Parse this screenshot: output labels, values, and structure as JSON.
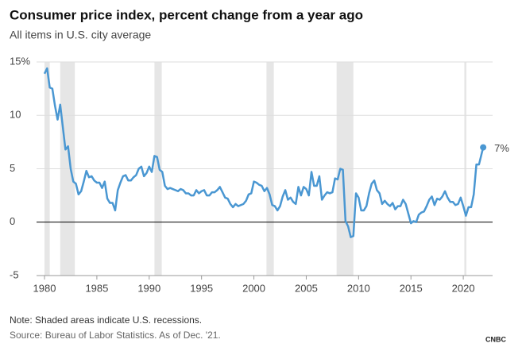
{
  "chart_data": {
    "type": "line",
    "title": "Consumer price index, percent change from a year ago",
    "subtitle": "All items in U.S. city average",
    "note": "Note: Shaded areas indicate U.S. recessions.",
    "source": "Source: Bureau of Labor Statistics. As of Dec. '21.",
    "logo": "CNBC",
    "xlim": [
      1979.24,
      2022.8
    ],
    "xticks": [
      1980,
      1985,
      1990,
      1995,
      2000,
      2005,
      2010,
      2015,
      2020
    ],
    "ylim": [
      -5,
      15
    ],
    "yticks": [
      -5,
      0,
      5,
      10,
      {
        "value": 15,
        "label": "15%"
      }
    ],
    "grid": true,
    "recessions": [
      [
        1980.0,
        1980.5
      ],
      [
        1981.5,
        1982.9
      ],
      [
        1990.5,
        1991.2
      ],
      [
        2001.2,
        2001.9
      ],
      [
        2007.9,
        2009.5
      ],
      [
        2020.1,
        2020.3
      ]
    ],
    "x": [
      1980,
      1980.25,
      1980.5,
      1980.75,
      1981,
      1981.25,
      1981.5,
      1981.75,
      1982,
      1982.25,
      1982.5,
      1982.75,
      1983,
      1983.25,
      1983.5,
      1983.75,
      1984,
      1984.25,
      1984.5,
      1984.75,
      1985,
      1985.25,
      1985.5,
      1985.75,
      1986,
      1986.25,
      1986.5,
      1986.75,
      1987,
      1987.25,
      1987.5,
      1987.75,
      1988,
      1988.25,
      1988.5,
      1988.75,
      1989,
      1989.25,
      1989.5,
      1989.75,
      1990,
      1990.25,
      1990.5,
      1990.75,
      1991,
      1991.25,
      1991.5,
      1991.75,
      1992,
      1992.25,
      1992.5,
      1992.75,
      1993,
      1993.25,
      1993.5,
      1993.75,
      1994,
      1994.25,
      1994.5,
      1994.75,
      1995,
      1995.25,
      1995.5,
      1995.75,
      1996,
      1996.25,
      1996.5,
      1996.75,
      1997,
      1997.25,
      1997.5,
      1997.75,
      1998,
      1998.25,
      1998.5,
      1998.75,
      1999,
      1999.25,
      1999.5,
      1999.75,
      2000,
      2000.25,
      2000.5,
      2000.75,
      2001,
      2001.25,
      2001.5,
      2001.75,
      2002,
      2002.25,
      2002.5,
      2002.75,
      2003,
      2003.25,
      2003.5,
      2003.75,
      2004,
      2004.25,
      2004.5,
      2004.75,
      2005,
      2005.25,
      2005.5,
      2005.75,
      2006,
      2006.25,
      2006.5,
      2006.75,
      2007,
      2007.25,
      2007.5,
      2007.75,
      2008,
      2008.25,
      2008.5,
      2008.75,
      2009,
      2009.25,
      2009.5,
      2009.75,
      2010,
      2010.25,
      2010.5,
      2010.75,
      2011,
      2011.25,
      2011.5,
      2011.75,
      2012,
      2012.25,
      2012.5,
      2012.75,
      2013,
      2013.25,
      2013.5,
      2013.75,
      2014,
      2014.25,
      2014.5,
      2014.75,
      2015,
      2015.25,
      2015.5,
      2015.75,
      2016,
      2016.25,
      2016.5,
      2016.75,
      2017,
      2017.25,
      2017.5,
      2017.75,
      2018,
      2018.25,
      2018.5,
      2018.75,
      2019,
      2019.25,
      2019.5,
      2019.75,
      2020,
      2020.25,
      2020.5,
      2020.75,
      2021,
      2021.25,
      2021.5,
      2021.9
    ],
    "series": [
      {
        "name": "CPI",
        "color": "#4a97d2",
        "values": [
          13.9,
          14.4,
          12.6,
          12.5,
          10.9,
          9.6,
          11.0,
          8.9,
          6.8,
          7.1,
          5.0,
          3.8,
          3.6,
          2.6,
          2.9,
          3.8,
          4.8,
          4.2,
          4.3,
          3.9,
          3.7,
          3.7,
          3.2,
          3.8,
          2.2,
          1.8,
          1.8,
          1.1,
          3.0,
          3.7,
          4.3,
          4.4,
          3.9,
          3.9,
          4.2,
          4.4,
          5.0,
          5.2,
          4.3,
          4.6,
          5.2,
          4.7,
          6.2,
          6.1,
          4.9,
          4.7,
          3.4,
          3.1,
          3.2,
          3.1,
          3.0,
          2.9,
          3.1,
          3.0,
          2.7,
          2.7,
          2.5,
          2.5,
          3.0,
          2.7,
          2.9,
          3.0,
          2.5,
          2.5,
          2.8,
          2.8,
          3.0,
          3.3,
          2.8,
          2.3,
          2.2,
          1.7,
          1.4,
          1.7,
          1.5,
          1.6,
          1.7,
          2.0,
          2.6,
          2.7,
          3.8,
          3.7,
          3.5,
          3.4,
          2.9,
          3.2,
          2.6,
          1.6,
          1.5,
          1.1,
          1.5,
          2.4,
          3.0,
          2.1,
          2.3,
          1.9,
          1.7,
          3.3,
          2.5,
          3.3,
          3.1,
          2.5,
          4.7,
          3.4,
          3.4,
          4.3,
          2.1,
          2.5,
          2.8,
          2.7,
          2.8,
          4.1,
          4.0,
          5.0,
          4.9,
          0.1,
          -0.4,
          -1.4,
          -1.3,
          2.7,
          2.3,
          1.1,
          1.1,
          1.5,
          2.7,
          3.6,
          3.9,
          3.0,
          2.7,
          1.7,
          2.0,
          1.7,
          1.5,
          1.8,
          1.2,
          1.5,
          1.5,
          2.1,
          1.7,
          0.8,
          -0.1,
          0.1,
          0.0,
          0.7,
          0.9,
          1.0,
          1.5,
          2.1,
          2.4,
          1.6,
          2.2,
          2.1,
          2.4,
          2.9,
          2.3,
          1.9,
          1.9,
          1.6,
          1.7,
          2.3,
          1.5,
          0.6,
          1.4,
          1.4,
          2.6,
          5.4,
          5.4,
          7.0
        ]
      }
    ],
    "annotations": [
      {
        "label": "7%",
        "x": 2021.9,
        "y": 7
      }
    ]
  }
}
